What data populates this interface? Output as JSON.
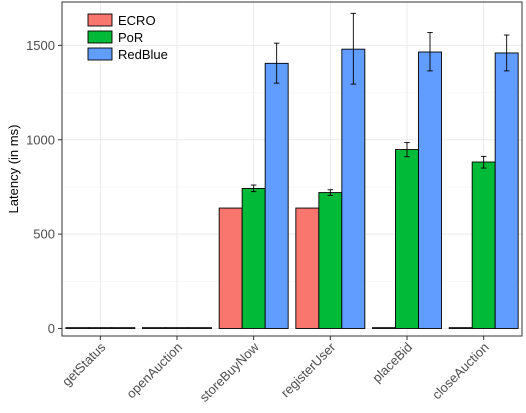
{
  "chart_data": {
    "type": "bar",
    "ylabel": "Latency (in ms)",
    "xlabel": "",
    "ylim": [
      -40,
      1730
    ],
    "yticks": [
      0,
      500,
      1000,
      1500
    ],
    "grid": true,
    "legend_position": "top-left",
    "categories": [
      "getStatus",
      "openAuction",
      "storeBuyNow",
      "registerUser",
      "placeBid",
      "closeAuction"
    ],
    "series": [
      {
        "name": "ECRO",
        "color": "#F8766D",
        "values": [
          0,
          0,
          638,
          638,
          0,
          0
        ],
        "err_low": [
          null,
          null,
          null,
          null,
          null,
          null
        ],
        "err_high": [
          null,
          null,
          null,
          null,
          null,
          null
        ]
      },
      {
        "name": "PoR",
        "color": "#00BA38",
        "values": [
          0,
          0,
          742,
          720,
          948,
          882
        ],
        "err_low": [
          null,
          null,
          725,
          705,
          910,
          850
        ],
        "err_high": [
          null,
          null,
          760,
          735,
          985,
          912
        ]
      },
      {
        "name": "RedBlue",
        "color": "#619CFF",
        "values": [
          0,
          0,
          1405,
          1480,
          1465,
          1460
        ],
        "err_low": [
          null,
          null,
          1300,
          1295,
          1365,
          1365
        ],
        "err_high": [
          null,
          null,
          1512,
          1670,
          1568,
          1555
        ]
      }
    ]
  }
}
